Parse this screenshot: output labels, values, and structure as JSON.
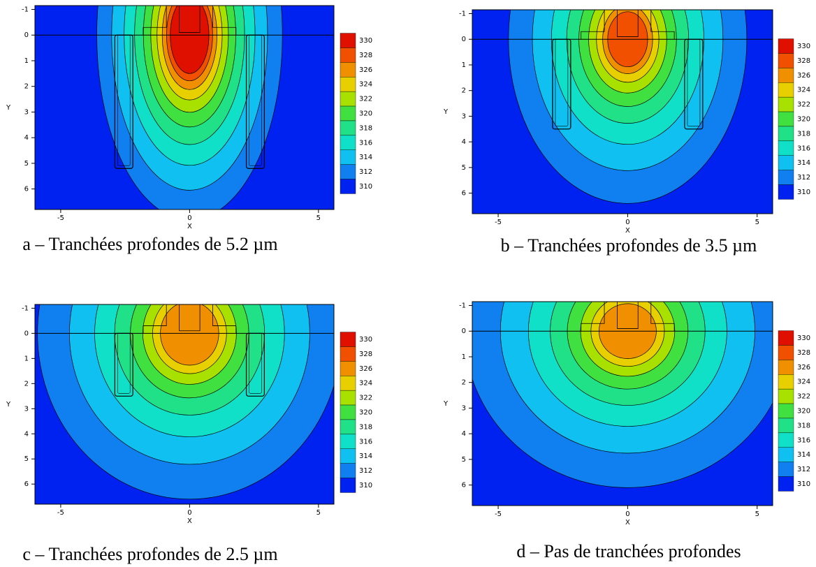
{
  "panels": [
    {
      "caption": "a – Tranchées profondes de 5.2 µm",
      "x_label": "X",
      "y_label": "Y",
      "xlim": [
        -6.0,
        5.6
      ],
      "ylim": [
        -1.15,
        6.8
      ],
      "xticks": [
        -5,
        0,
        5
      ],
      "yticks": [
        -1,
        0,
        1,
        2,
        3,
        4,
        5,
        6
      ],
      "levels": [
        330,
        328,
        326,
        324,
        322,
        320,
        318,
        316,
        314,
        312,
        310
      ],
      "colors": [
        "#e01000",
        "#f05000",
        "#f09000",
        "#e8d000",
        "#a8e000",
        "#40e040",
        "#20e088",
        "#10e0c8",
        "#10c0f0",
        "#1080f0",
        "#0022f0"
      ]
    },
    {
      "caption": "b – Tranchées profondes de 3.5 µm",
      "x_label": "X",
      "y_label": "Y",
      "xlim": [
        -6.0,
        5.6
      ],
      "ylim": [
        -1.15,
        6.8
      ],
      "xticks": [
        -5,
        0,
        5
      ],
      "yticks": [
        -1,
        0,
        1,
        2,
        3,
        4,
        5,
        6
      ],
      "levels": [
        330,
        328,
        326,
        324,
        322,
        320,
        318,
        316,
        314,
        312,
        310
      ],
      "colors": [
        "#e01000",
        "#f05000",
        "#f09000",
        "#e8d000",
        "#a8e000",
        "#40e040",
        "#20e088",
        "#10e0c8",
        "#10c0f0",
        "#1080f0",
        "#0022f0"
      ]
    },
    {
      "caption": "c – Tranchées profondes de 2.5 µm",
      "x_label": "X",
      "y_label": "Y",
      "xlim": [
        -6.0,
        5.6
      ],
      "ylim": [
        -1.15,
        6.8
      ],
      "xticks": [
        -5,
        0,
        5
      ],
      "yticks": [
        -1,
        0,
        1,
        2,
        3,
        4,
        5,
        6
      ],
      "levels": [
        330,
        328,
        326,
        324,
        322,
        320,
        318,
        316,
        314,
        312,
        310
      ],
      "colors": [
        "#e01000",
        "#f05000",
        "#f09000",
        "#e8d000",
        "#a8e000",
        "#40e040",
        "#20e088",
        "#10e0c8",
        "#10c0f0",
        "#1080f0",
        "#0022f0"
      ]
    },
    {
      "caption": "d – Pas de tranchées profondes",
      "x_label": "X",
      "y_label": "Y",
      "xlim": [
        -6.0,
        5.6
      ],
      "ylim": [
        -1.15,
        6.8
      ],
      "xticks": [
        -5,
        0,
        5
      ],
      "yticks": [
        -1,
        0,
        1,
        2,
        3,
        4,
        5,
        6
      ],
      "levels": [
        330,
        328,
        326,
        324,
        322,
        320,
        318,
        316,
        314,
        312,
        310
      ],
      "colors": [
        "#e01000",
        "#f05000",
        "#f09000",
        "#e8d000",
        "#a8e000",
        "#40e040",
        "#20e088",
        "#10e0c8",
        "#10c0f0",
        "#1080f0",
        "#0022f0"
      ]
    }
  ]
}
